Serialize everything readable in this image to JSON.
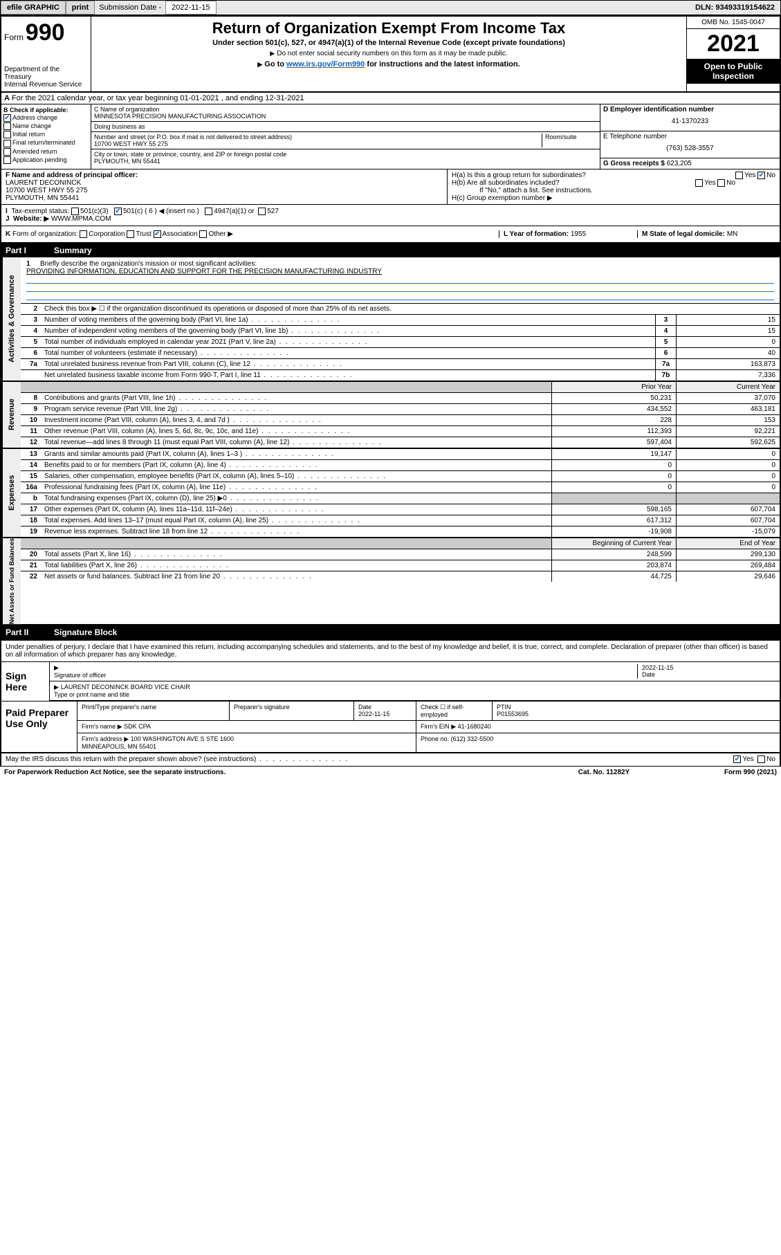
{
  "topbar": {
    "efile": "efile GRAPHIC",
    "print": "print",
    "sub_label": "Submission Date - ",
    "sub_date": "2022-11-15",
    "dln": "DLN: 93493319154622"
  },
  "header": {
    "form_word": "Form",
    "form_num": "990",
    "title": "Return of Organization Exempt From Income Tax",
    "subtitle": "Under section 501(c), 527, or 4947(a)(1) of the Internal Revenue Code (except private foundations)",
    "note1": "Do not enter social security numbers on this form as it may be made public.",
    "note2_pre": "Go to ",
    "note2_link": "www.irs.gov/Form990",
    "note2_post": " for instructions and the latest information.",
    "omb": "OMB No. 1545-0047",
    "year": "2021",
    "open1": "Open to Public",
    "open2": "Inspection",
    "dept": "Department of the Treasury\nInternal Revenue Service"
  },
  "rowA": {
    "label": "A",
    "text": "For the 2021 calendar year, or tax year beginning 01-01-2021   , and ending 12-31-2021"
  },
  "colB": {
    "label": "B Check if applicable:",
    "addr_change": "Address change",
    "name_change": "Name change",
    "initial": "Initial return",
    "final": "Final return/terminated",
    "amended": "Amended return",
    "app_pending": "Application pending"
  },
  "colC": {
    "name_label": "C Name of organization",
    "name": "MINNESOTA PRECISION MANUFACTURING ASSOCIATION",
    "dba_label": "Doing business as",
    "street_label": "Number and street (or P.O. box if mail is not delivered to street address)",
    "room_label": "Room/suite",
    "street": "10700 WEST HWY 55 275",
    "city_label": "City or town, state or province, country, and ZIP or foreign postal code",
    "city": "PLYMOUTH, MN  55441"
  },
  "colD": {
    "d_label": "D Employer identification number",
    "ein": "41-1370233",
    "e_label": "E Telephone number",
    "phone": "(763) 528-3557",
    "g_label": "G Gross receipts $",
    "gross": "623,205"
  },
  "rowF": {
    "f_label": "F Name and address of principal officer:",
    "officer": "LAURENT DECONINCK\n10700 WEST HWY 55 275\nPLYMOUTH, MN  55441",
    "ha": "H(a)  Is this a group return for subordinates?",
    "hb": "H(b)  Are all subordinates included?",
    "hb_note": "If \"No,\" attach a list. See instructions.",
    "hc": "H(c)  Group exemption number ▶",
    "yes": "Yes",
    "no": "No"
  },
  "rowI": {
    "label": "I",
    "text": "Tax-exempt status:",
    "c3": "501(c)(3)",
    "c": "501(c) ( 6 ) ◀ (insert no.)",
    "a1": "4947(a)(1) or",
    "s527": "527"
  },
  "rowJ": {
    "label": "J",
    "text": "Website: ▶",
    "site": "WWW.MPMA.COM"
  },
  "rowK": {
    "label": "K",
    "text": "Form of organization:",
    "corp": "Corporation",
    "trust": "Trust",
    "assoc": "Association",
    "other": "Other ▶",
    "l_label": "L Year of formation: ",
    "l_val": "1955",
    "m_label": "M State of legal domicile: ",
    "m_val": "MN"
  },
  "part1": {
    "num": "Part I",
    "title": "Summary"
  },
  "mission": {
    "num": "1",
    "label": "Briefly describe the organization's mission or most significant activities:",
    "text": "PROVIDING INFORMATION, EDUCATION AND SUPPORT FOR THE PRECISION MANUFACTURING INDUSTRY"
  },
  "line2": {
    "num": "2",
    "text": "Check this box ▶ ☐  if the organization discontinued its operations or disposed of more than 25% of its net assets."
  },
  "governance": {
    "label": "Activities & Governance",
    "lines": [
      {
        "n": "3",
        "d": "Number of voting members of the governing body (Part VI, line 1a)",
        "b": "3",
        "v": "15"
      },
      {
        "n": "4",
        "d": "Number of independent voting members of the governing body (Part VI, line 1b)",
        "b": "4",
        "v": "15"
      },
      {
        "n": "5",
        "d": "Total number of individuals employed in calendar year 2021 (Part V, line 2a)",
        "b": "5",
        "v": "0"
      },
      {
        "n": "6",
        "d": "Total number of volunteers (estimate if necessary)",
        "b": "6",
        "v": "40"
      },
      {
        "n": "7a",
        "d": "Total unrelated business revenue from Part VIII, column (C), line 12",
        "b": "7a",
        "v": "163,873"
      },
      {
        "n": "",
        "d": "Net unrelated business taxable income from Form 990-T, Part I, line 11",
        "b": "7b",
        "v": "7,336"
      }
    ]
  },
  "revenue": {
    "label": "Revenue",
    "h1": "Prior Year",
    "h2": "Current Year",
    "lines": [
      {
        "n": "8",
        "d": "Contributions and grants (Part VIII, line 1h)",
        "p": "50,231",
        "c": "37,070"
      },
      {
        "n": "9",
        "d": "Program service revenue (Part VIII, line 2g)",
        "p": "434,552",
        "c": "463,181"
      },
      {
        "n": "10",
        "d": "Investment income (Part VIII, column (A), lines 3, 4, and 7d )",
        "p": "228",
        "c": "153"
      },
      {
        "n": "11",
        "d": "Other revenue (Part VIII, column (A), lines 5, 6d, 8c, 9c, 10c, and 11e)",
        "p": "112,393",
        "c": "92,221"
      },
      {
        "n": "12",
        "d": "Total revenue—add lines 8 through 11 (must equal Part VIII, column (A), line 12)",
        "p": "597,404",
        "c": "592,625"
      }
    ]
  },
  "expenses": {
    "label": "Expenses",
    "lines": [
      {
        "n": "13",
        "d": "Grants and similar amounts paid (Part IX, column (A), lines 1–3 )",
        "p": "19,147",
        "c": "0"
      },
      {
        "n": "14",
        "d": "Benefits paid to or for members (Part IX, column (A), line 4)",
        "p": "0",
        "c": "0"
      },
      {
        "n": "15",
        "d": "Salaries, other compensation, employee benefits (Part IX, column (A), lines 5–10)",
        "p": "0",
        "c": "0"
      },
      {
        "n": "16a",
        "d": "Professional fundraising fees (Part IX, column (A), line 11e)",
        "p": "0",
        "c": "0"
      },
      {
        "n": "b",
        "d": "Total fundraising expenses (Part IX, column (D), line 25) ▶0",
        "p": "",
        "c": "",
        "shaded": true
      },
      {
        "n": "17",
        "d": "Other expenses (Part IX, column (A), lines 11a–11d, 11f–24e)",
        "p": "598,165",
        "c": "607,704"
      },
      {
        "n": "18",
        "d": "Total expenses. Add lines 13–17 (must equal Part IX, column (A), line 25)",
        "p": "617,312",
        "c": "607,704"
      },
      {
        "n": "19",
        "d": "Revenue less expenses. Subtract line 18 from line 12",
        "p": "-19,908",
        "c": "-15,079"
      }
    ]
  },
  "netassets": {
    "label": "Net Assets or Fund Balances",
    "h1": "Beginning of Current Year",
    "h2": "End of Year",
    "lines": [
      {
        "n": "20",
        "d": "Total assets (Part X, line 16)",
        "p": "248,599",
        "c": "299,130"
      },
      {
        "n": "21",
        "d": "Total liabilities (Part X, line 26)",
        "p": "203,874",
        "c": "269,484"
      },
      {
        "n": "22",
        "d": "Net assets or fund balances. Subtract line 21 from line 20",
        "p": "44,725",
        "c": "29,646"
      }
    ]
  },
  "part2": {
    "num": "Part II",
    "title": "Signature Block"
  },
  "sig": {
    "penalty": "Under penalties of perjury, I declare that I have examined this return, including accompanying schedules and statements, and to the best of my knowledge and belief, it is true, correct, and complete. Declaration of preparer (other than officer) is based on all information of which preparer has any knowledge.",
    "sign_here": "Sign Here",
    "sig_officer": "Signature of officer",
    "date": "Date",
    "sig_date": "2022-11-15",
    "name_title": "LAURENT DECONINCK  BOARD VICE CHAIR",
    "name_label": "Type or print name and title"
  },
  "prep": {
    "label": "Paid Preparer Use Only",
    "h_name": "Print/Type preparer's name",
    "h_sig": "Preparer's signature",
    "h_date": "Date",
    "date": "2022-11-15",
    "h_check": "Check ☐ if self-employed",
    "h_ptin": "PTIN",
    "ptin": "P01553695",
    "firm_name_l": "Firm's name    ▶",
    "firm_name": "SDK CPA",
    "firm_ein_l": "Firm's EIN ▶",
    "firm_ein": "41-1680240",
    "firm_addr_l": "Firm's address ▶",
    "firm_addr": "100 WASHINGTON AVE S STE 1600\nMINNEAPOLIS, MN  55401",
    "phone_l": "Phone no.",
    "phone": "(612) 332-5500"
  },
  "footer": {
    "discuss": "May the IRS discuss this return with the preparer shown above? (see instructions)",
    "yes": "Yes",
    "no": "No",
    "pra": "For Paperwork Reduction Act Notice, see the separate instructions.",
    "cat": "Cat. No. 11282Y",
    "form": "Form 990 (2021)"
  }
}
